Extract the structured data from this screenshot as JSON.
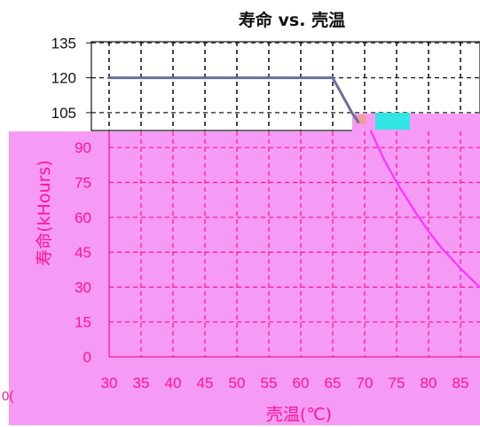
{
  "chart_data": {
    "type": "line",
    "title": "寿命 vs. 壳温",
    "xlabel": "壳温(℃)",
    "ylabel": "寿命(kHours)",
    "xlim": [
      30,
      88
    ],
    "x_ticks": [
      30,
      35,
      40,
      45,
      50,
      55,
      60,
      65,
      70,
      75,
      80,
      85
    ],
    "upper_y_ticks": [
      135,
      120,
      105
    ],
    "lower_y_ticks": [
      90,
      75,
      60,
      45,
      30,
      15,
      0
    ],
    "ylim": [
      0,
      140
    ],
    "grid": true,
    "series": [
      {
        "color": "#6b6f9a",
        "x": [
          30,
          65,
          68,
          69
        ],
        "y": [
          120,
          120,
          105,
          101
        ]
      },
      {
        "color": "#ff33ff",
        "x": [
          71,
          73,
          75,
          78,
          80,
          82,
          85,
          88
        ],
        "y": [
          97,
          85,
          75,
          62,
          54,
          47,
          38,
          30
        ]
      }
    ],
    "fragment_text": "0("
  },
  "colors": {
    "pink_panel": "#f59af5",
    "pink_text": "#ff1493",
    "cyan_patch": "#33e6e6",
    "grid_dark": "#1a1a1a"
  }
}
